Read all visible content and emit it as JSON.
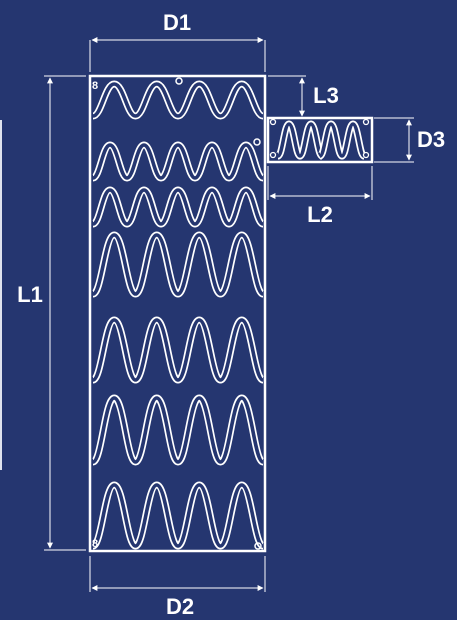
{
  "dimensions": {
    "d1": "D1",
    "d2": "D2",
    "d3": "D3",
    "l1": "L1",
    "l2": "L2",
    "l3": "L3"
  },
  "markers": {
    "top_left": "8",
    "bottom_left": "8"
  },
  "colors": {
    "background": "#253670",
    "stroke": "#ffffff"
  }
}
